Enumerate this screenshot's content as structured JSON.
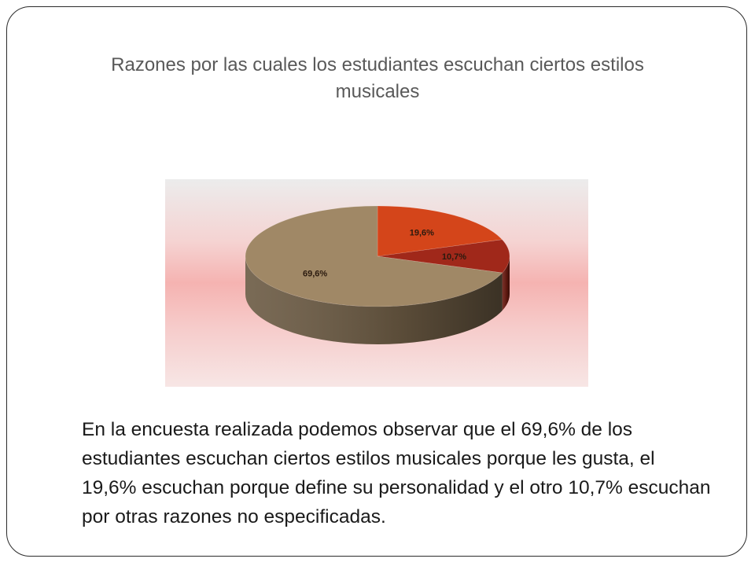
{
  "slide": {
    "title": "Razones por las cuales los estudiantes escuchan ciertos estilos musicales",
    "body": "En la encuesta realizada podemos observar que el 69,6% de los estudiantes escuchan ciertos estilos musicales porque les gusta, el 19,6% escuchan porque define su personalidad y el otro 10,7% escuchan por otras razones no especificadas."
  },
  "chart_data": {
    "type": "pie",
    "style": "3d",
    "legend": "none",
    "slices": [
      {
        "value": 19.6,
        "label": "19,6%",
        "color": "#d4451a",
        "side_color": "#8f2d10"
      },
      {
        "value": 10.7,
        "label": "10,7%",
        "color": "#a0281a",
        "side_color": "#6a1a10"
      },
      {
        "value": 69.6,
        "label": "69,6%",
        "color": "#a08866",
        "side_color": "#6b5a43"
      }
    ]
  }
}
